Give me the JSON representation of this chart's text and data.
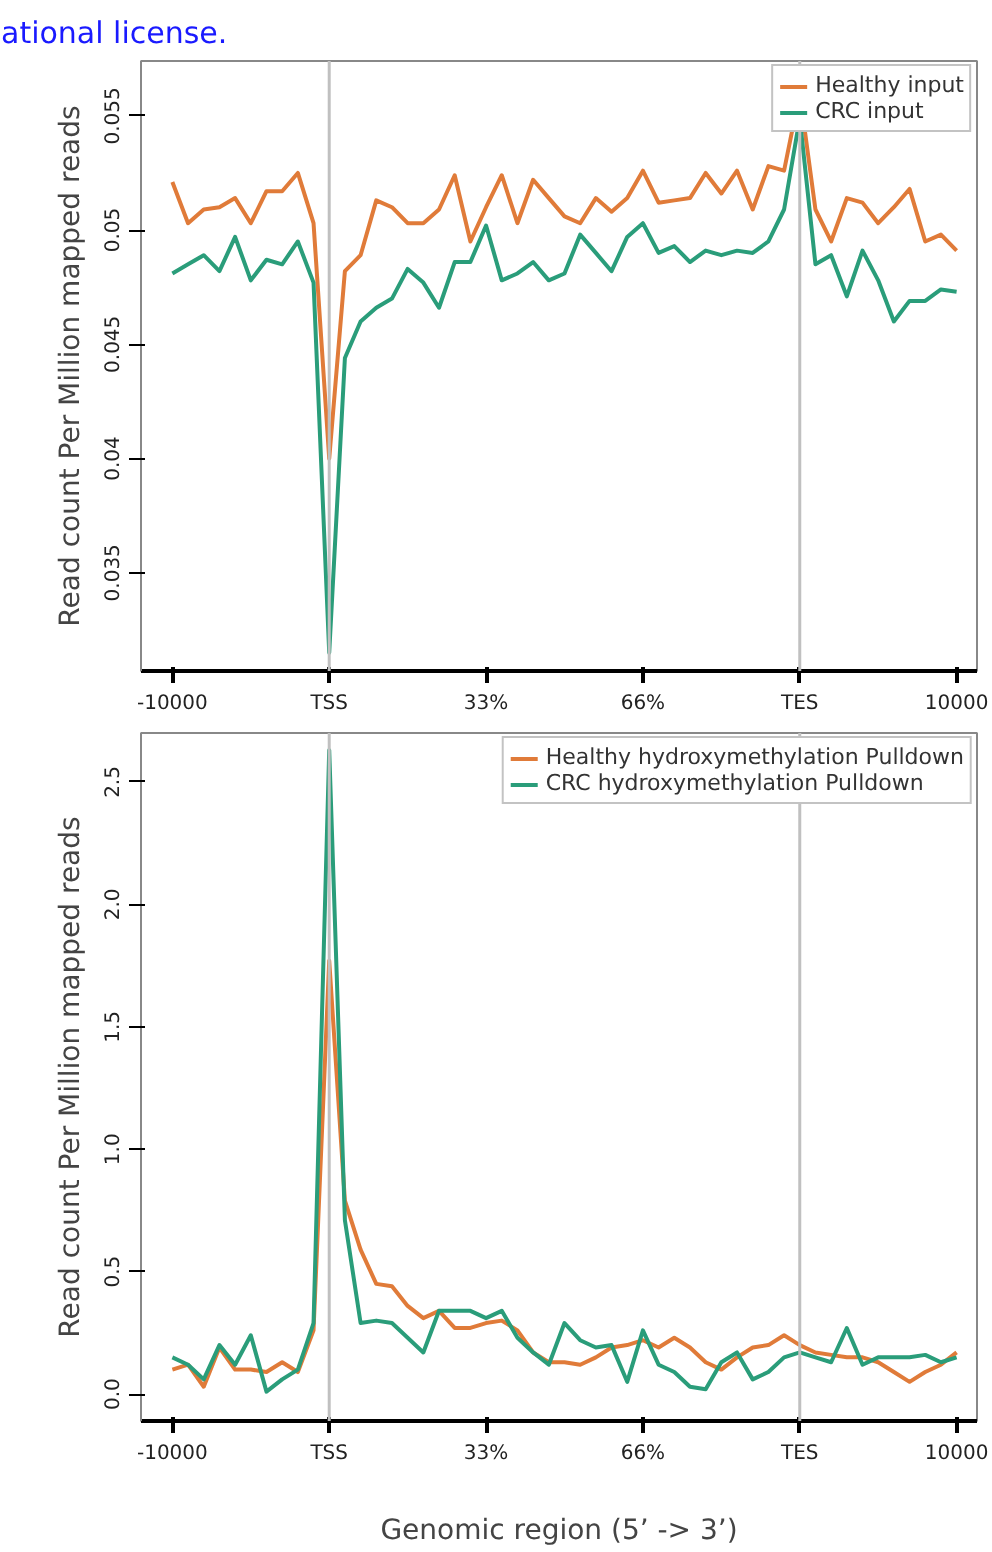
{
  "chart_data": [
    {
      "type": "line",
      "ylabel": "Read count Per Million mapped reads",
      "annotations": [
        "ational license."
      ],
      "categories": [
        "-10000",
        null,
        null,
        null,
        null,
        null,
        null,
        null,
        null,
        null,
        "TSS",
        null,
        null,
        null,
        null,
        null,
        null,
        null,
        null,
        null,
        "33%",
        null,
        null,
        null,
        null,
        null,
        null,
        null,
        null,
        null,
        "66%",
        null,
        null,
        null,
        null,
        null,
        null,
        null,
        null,
        null,
        "TES",
        null,
        null,
        null,
        null,
        null,
        null,
        null,
        null,
        null,
        "10000"
      ],
      "ylim": [
        0.0307,
        0.0574
      ],
      "yticks": [
        0.035,
        0.04,
        0.045,
        0.05,
        0.055
      ],
      "grid": false,
      "legend": "top right",
      "line_style": "solid",
      "ref_lines": [
        {
          "axis": "x",
          "value": "TSS",
          "color": "#c0c0c0"
        },
        {
          "axis": "x",
          "value": "TES",
          "color": "#c0c0c0"
        }
      ],
      "series": [
        {
          "name": "Healthy input",
          "color": "#e07b39",
          "values": [
            0.0521,
            0.0503,
            0.0509,
            0.051,
            0.0514,
            0.0503,
            0.0517,
            0.0517,
            0.0525,
            0.0503,
            0.04,
            0.0482,
            0.0489,
            0.0513,
            0.051,
            0.0503,
            0.0503,
            0.0509,
            0.0524,
            0.0495,
            0.051,
            0.0524,
            0.0503,
            0.0522,
            0.0514,
            0.0506,
            0.0503,
            0.0514,
            0.0508,
            0.0514,
            0.0526,
            0.0512,
            0.0513,
            0.0514,
            0.0525,
            0.0516,
            0.0526,
            0.0509,
            0.0528,
            0.0526,
            0.056,
            0.0509,
            0.0495,
            0.0514,
            0.0512,
            0.0503,
            0.051,
            0.0518,
            0.0495,
            0.0498,
            0.0491
          ]
        },
        {
          "name": "CRC input",
          "color": "#2a9d7a",
          "values": [
            0.0481,
            0.0485,
            0.0489,
            0.0482,
            0.0497,
            0.0478,
            0.0487,
            0.0485,
            0.0495,
            0.0477,
            0.0315,
            0.0444,
            0.046,
            0.0466,
            0.047,
            0.0483,
            0.0477,
            0.0466,
            0.0486,
            0.0486,
            0.0502,
            0.0478,
            0.0481,
            0.0486,
            0.0478,
            0.0481,
            0.0498,
            0.049,
            0.0482,
            0.0497,
            0.0503,
            0.049,
            0.0493,
            0.0486,
            0.0491,
            0.0489,
            0.0491,
            0.049,
            0.0495,
            0.0509,
            0.0549,
            0.0485,
            0.0489,
            0.0471,
            0.0491,
            0.0478,
            0.046,
            0.0469,
            0.0469,
            0.0474,
            0.0473
          ]
        }
      ]
    },
    {
      "type": "line",
      "ylabel": "Read count Per Million mapped reads",
      "xlabel": "Genomic region (5’ -> 3’)",
      "categories": [
        "-10000",
        null,
        null,
        null,
        null,
        null,
        null,
        null,
        null,
        null,
        "TSS",
        null,
        null,
        null,
        null,
        null,
        null,
        null,
        null,
        null,
        "33%",
        null,
        null,
        null,
        null,
        null,
        null,
        null,
        null,
        null,
        "66%",
        null,
        null,
        null,
        null,
        null,
        null,
        null,
        null,
        null,
        "TES",
        null,
        null,
        null,
        null,
        null,
        null,
        null,
        null,
        null,
        "10000"
      ],
      "ylim": [
        -0.11,
        2.7
      ],
      "yticks": [
        {
          "value": 0,
          "label": "0.0"
        },
        0.5,
        {
          "value": 1,
          "label": "1.0"
        },
        1.5,
        {
          "value": 2,
          "label": "2.0"
        },
        2.5
      ],
      "grid": false,
      "legend": "top right",
      "line_style": "solid",
      "ref_lines": [
        {
          "axis": "x",
          "value": "TSS",
          "color": "#c0c0c0"
        },
        {
          "axis": "x",
          "value": "TES",
          "color": "#c0c0c0"
        }
      ],
      "series": [
        {
          "name": "Healthy hydroxymethylation Pulldown",
          "color": "#e07b39",
          "values": [
            0.1,
            0.12,
            0.03,
            0.19,
            0.1,
            0.1,
            0.09,
            0.13,
            0.09,
            0.26,
            1.77,
            0.79,
            0.59,
            0.45,
            0.44,
            0.36,
            0.31,
            0.34,
            0.27,
            0.27,
            0.29,
            0.3,
            0.26,
            0.17,
            0.13,
            0.13,
            0.12,
            0.15,
            0.19,
            0.2,
            0.22,
            0.19,
            0.23,
            0.19,
            0.13,
            0.1,
            0.15,
            0.19,
            0.2,
            0.24,
            0.2,
            0.17,
            0.16,
            0.15,
            0.15,
            0.13,
            0.09,
            0.05,
            0.09,
            0.12,
            0.17
          ]
        },
        {
          "name": "CRC hydroxymethylation Pulldown",
          "color": "#2a9d7a",
          "values": [
            0.15,
            0.12,
            0.06,
            0.2,
            0.12,
            0.24,
            0.01,
            0.06,
            0.1,
            0.29,
            2.63,
            0.71,
            0.29,
            0.3,
            0.29,
            0.23,
            0.17,
            0.34,
            0.34,
            0.34,
            0.31,
            0.34,
            0.23,
            0.17,
            0.12,
            0.29,
            0.22,
            0.19,
            0.2,
            0.05,
            0.26,
            0.12,
            0.09,
            0.03,
            0.02,
            0.13,
            0.17,
            0.06,
            0.09,
            0.15,
            0.17,
            0.15,
            0.13,
            0.27,
            0.12,
            0.15,
            0.15,
            0.15,
            0.16,
            0.13,
            0.15
          ]
        }
      ]
    }
  ]
}
